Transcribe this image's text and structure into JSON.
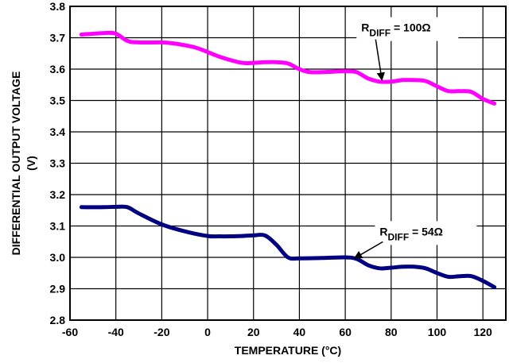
{
  "chart_data": {
    "type": "line",
    "title": "",
    "xlabel": "TEMPERATURE  (°C)",
    "ylabel_line1": "DIFFERENTIAL OUTPUT VOLTAGE",
    "ylabel_line2": "(V)",
    "xlim": [
      -60,
      130
    ],
    "ylim": [
      2.8,
      3.8
    ],
    "x_ticks": [
      "-60",
      "-40",
      "-20",
      "0",
      "20",
      "40",
      "60",
      "80",
      "100",
      "120"
    ],
    "y_ticks": [
      "2.8",
      "2.9",
      "3.0",
      "3.1",
      "3.2",
      "3.3",
      "3.4",
      "3.5",
      "3.6",
      "3.7",
      "3.8"
    ],
    "grid": true,
    "series": [
      {
        "name": "R_DIFF = 100Ω",
        "color": "#ff00ff",
        "x": [
          -55,
          -45,
          -40,
          -35,
          -30,
          -20,
          -15,
          -5,
          5,
          15,
          20,
          25,
          30,
          35,
          40,
          45,
          55,
          60,
          65,
          70,
          75,
          80,
          85,
          90,
          95,
          100,
          105,
          110,
          115,
          120,
          125
        ],
        "y": [
          3.71,
          3.715,
          3.713,
          3.69,
          3.685,
          3.685,
          3.682,
          3.668,
          3.64,
          3.62,
          3.62,
          3.622,
          3.622,
          3.618,
          3.6,
          3.59,
          3.592,
          3.593,
          3.59,
          3.57,
          3.56,
          3.56,
          3.565,
          3.565,
          3.562,
          3.545,
          3.53,
          3.53,
          3.527,
          3.505,
          3.49
        ]
      },
      {
        "name": "R_DIFF = 54Ω",
        "color": "#000080",
        "x": [
          -55,
          -45,
          -40,
          -35,
          -30,
          -20,
          -10,
          0,
          5,
          10,
          15,
          20,
          25,
          30,
          35,
          40,
          50,
          60,
          65,
          70,
          75,
          80,
          85,
          90,
          95,
          100,
          105,
          110,
          115,
          120,
          125
        ],
        "y": [
          3.16,
          3.16,
          3.161,
          3.16,
          3.14,
          3.105,
          3.083,
          3.068,
          3.067,
          3.067,
          3.068,
          3.07,
          3.07,
          3.04,
          3.0,
          2.997,
          2.998,
          3.0,
          2.995,
          2.975,
          2.965,
          2.967,
          2.97,
          2.97,
          2.965,
          2.95,
          2.938,
          2.94,
          2.94,
          2.925,
          2.905
        ]
      }
    ],
    "annotations": [
      {
        "label_main": "R",
        "label_sub": "DIFF",
        "label_rest": " = 100Ω",
        "label_x": 67,
        "label_y": 3.72,
        "arrow_to_x": 76,
        "arrow_to_y": 3.565
      },
      {
        "label_main": "R",
        "label_sub": "DIFF",
        "label_rest": " = 54Ω",
        "label_x": 75,
        "label_y": 3.07,
        "arrow_to_x": 64,
        "arrow_to_y": 2.997
      }
    ]
  }
}
